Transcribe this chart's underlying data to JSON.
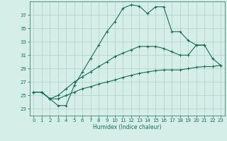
{
  "xlabel": "Humidex (Indice chaleur)",
  "background_color": "#d6eee8",
  "grid_color": "#b0cfc8",
  "line_color": "#1a6b5a",
  "xlim": [
    -0.5,
    23.5
  ],
  "ylim": [
    22.0,
    39.0
  ],
  "yticks": [
    23,
    25,
    27,
    29,
    31,
    33,
    35,
    37
  ],
  "xticks": [
    0,
    1,
    2,
    3,
    4,
    5,
    6,
    7,
    8,
    9,
    10,
    11,
    12,
    13,
    14,
    15,
    16,
    17,
    18,
    19,
    20,
    21,
    22,
    23
  ],
  "line1_x": [
    0,
    1,
    2,
    3,
    4,
    5,
    6,
    7,
    8,
    9,
    10,
    11,
    12,
    13,
    14,
    15,
    16,
    17,
    18,
    19,
    20,
    21
  ],
  "line1_y": [
    25.5,
    25.5,
    24.5,
    23.5,
    23.5,
    26.5,
    28.5,
    30.5,
    32.5,
    34.5,
    36.0,
    38.0,
    38.5,
    38.3,
    37.2,
    38.2,
    38.2,
    34.5,
    34.5,
    33.2,
    32.5,
    32.5
  ],
  "line2_x": [
    0,
    1,
    2,
    3,
    4,
    5,
    6,
    7,
    8,
    9,
    10,
    11,
    12,
    13,
    14,
    15,
    16,
    17,
    18,
    19,
    20,
    21,
    22,
    23
  ],
  "line2_y": [
    25.5,
    25.5,
    24.5,
    25.0,
    26.0,
    27.0,
    27.8,
    28.5,
    29.3,
    30.0,
    30.8,
    31.3,
    31.8,
    32.3,
    32.3,
    32.3,
    32.0,
    31.5,
    31.0,
    31.0,
    32.5,
    32.5,
    30.5,
    29.5
  ],
  "line3_x": [
    0,
    1,
    2,
    3,
    4,
    5,
    6,
    7,
    8,
    9,
    10,
    11,
    12,
    13,
    14,
    15,
    16,
    17,
    18,
    19,
    20,
    21,
    22,
    23
  ],
  "line3_y": [
    25.5,
    25.5,
    24.5,
    24.5,
    25.0,
    25.5,
    26.0,
    26.3,
    26.7,
    27.0,
    27.3,
    27.7,
    28.0,
    28.3,
    28.5,
    28.7,
    28.8,
    28.8,
    28.8,
    29.0,
    29.2,
    29.3,
    29.3,
    29.5
  ]
}
